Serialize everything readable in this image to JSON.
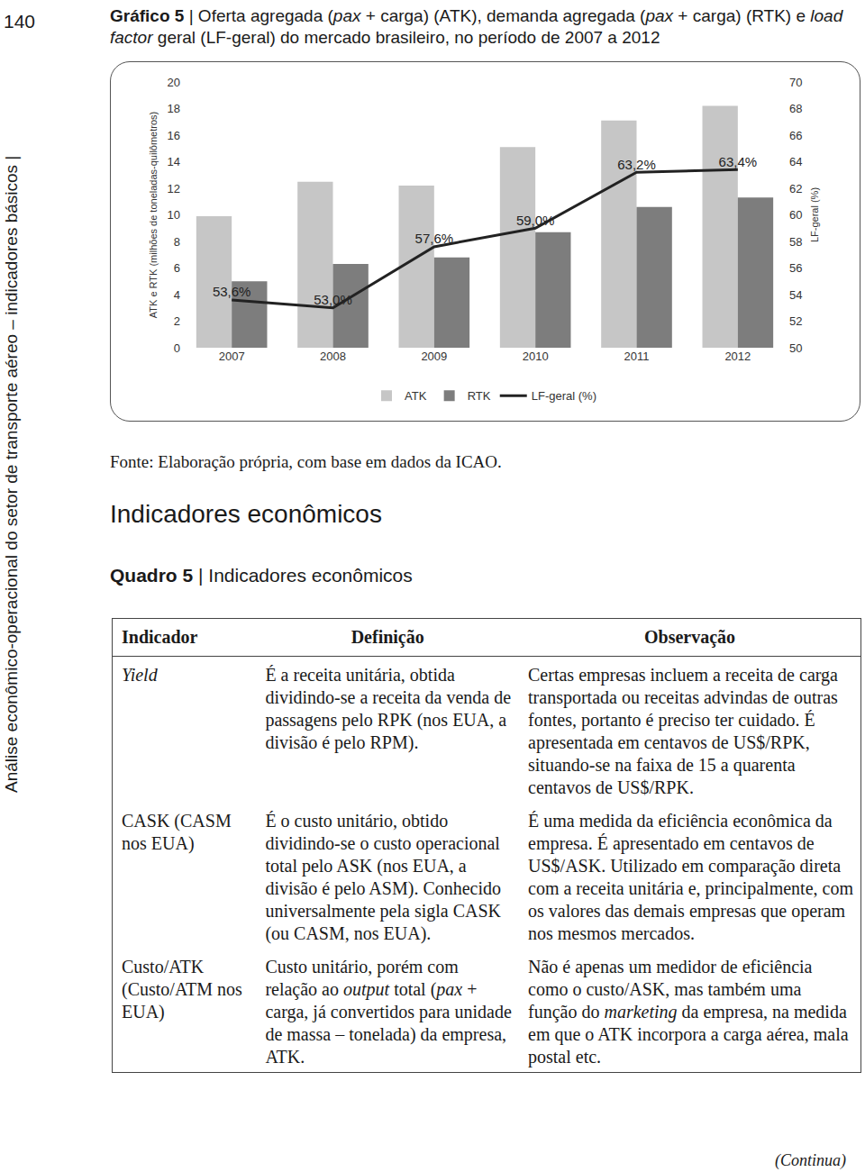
{
  "page": {
    "number": "140",
    "running_header": "Análise econômico-operacional do setor de transporte aéreo – indicadores básicos |"
  },
  "chart_data": {
    "type": "bar",
    "title": [
      {
        "b": "Gráfico 5"
      },
      " | Oferta agregada (",
      {
        "i": "pax"
      },
      " + carga) (ATK), demanda agregada (",
      {
        "i": "pax"
      },
      " + carga) (RTK) e ",
      {
        "i": "load factor"
      },
      " geral (LF-geral) do mercado brasileiro, no período de 2007 a 2012"
    ],
    "categories": [
      "2007",
      "2008",
      "2009",
      "2010",
      "2011",
      "2012"
    ],
    "series": [
      {
        "name": "ATK",
        "type": "bar",
        "color": "#c6c6c6",
        "values": [
          9.9,
          12.5,
          12.2,
          15.1,
          17.1,
          18.2
        ]
      },
      {
        "name": "RTK",
        "type": "bar",
        "color": "#7d7d7d",
        "values": [
          5.0,
          6.3,
          6.8,
          8.7,
          10.6,
          11.3
        ]
      },
      {
        "name": "LF-geral (%)",
        "type": "line",
        "axis": "y2",
        "color": "#222222",
        "line_style": "solid",
        "data_labels": true,
        "values": [
          53.6,
          53.0,
          57.6,
          59.0,
          63.2,
          63.4
        ],
        "value_labels": [
          "53,6%",
          "53,0%",
          "57,6%",
          "59,0%",
          "63,2%",
          "63,4%"
        ]
      }
    ],
    "ylabel": "ATK e RTK (milhões de toneladas-quilômetros)",
    "y2label": "LF-geral (%)",
    "ylim": [
      0,
      20
    ],
    "yticks": [
      0,
      2,
      4,
      6,
      8,
      10,
      12,
      14,
      16,
      18,
      20
    ],
    "y2lim": [
      50,
      70
    ],
    "y2ticks": [
      50,
      52,
      54,
      56,
      58,
      60,
      62,
      64,
      66,
      68,
      70
    ],
    "grid": false,
    "legend": "bottom"
  },
  "document": {
    "source": "Fonte: Elaboração própria, com base em dados da ICAO.",
    "heading": "Indicadores econômicos",
    "caption": [
      {
        "b": "Quadro 5"
      },
      " | Indicadores econômicos"
    ],
    "table": {
      "header": [
        "Indicador",
        "Definição",
        "Observação"
      ],
      "rows": [
        [
          [
            {
              "i": "Yield"
            }
          ],
          "É a receita unitária, obtida dividindo-se a receita da venda de passagens pelo RPK (nos EUA, a divisão é pelo RPM).",
          "Certas empresas incluem a receita de carga transportada ou receitas advindas de outras fontes, portanto é preciso ter cuidado. É apresentada em centavos de US$/RPK, situando-se na faixa de 15 a quarenta centavos de US$/RPK."
        ],
        [
          "CASK (CASM nos EUA)",
          "É o custo unitário, obtido dividindo-se o custo operacional total pelo ASK (nos EUA, a divisão é pelo ASM). Conhecido universalmente pela sigla CASK (ou CASM, nos EUA).",
          "É uma medida da eficiência econômica da empresa. É apresentado em centavos de US$/ASK. Utilizado em comparação direta com a receita unitária e, principalmente, com os valores das demais empresas que operam nos mesmos mercados."
        ],
        [
          "Custo/ATK (Custo/ATM nos EUA)",
          [
            "Custo unitário, porém com relação ao ",
            {
              "i": "output"
            },
            " total (",
            {
              "i": "pax"
            },
            " + carga, já convertidos para unidade de massa – tonelada) da empresa, ATK."
          ],
          [
            "Não é apenas um medidor de eficiência como o custo/ASK, mas também uma função do ",
            {
              "i": "marketing"
            },
            " da empresa, na medida em que o ATK incorpora a carga aérea, mala postal etc."
          ]
        ]
      ]
    },
    "footer": "(Continua)"
  }
}
